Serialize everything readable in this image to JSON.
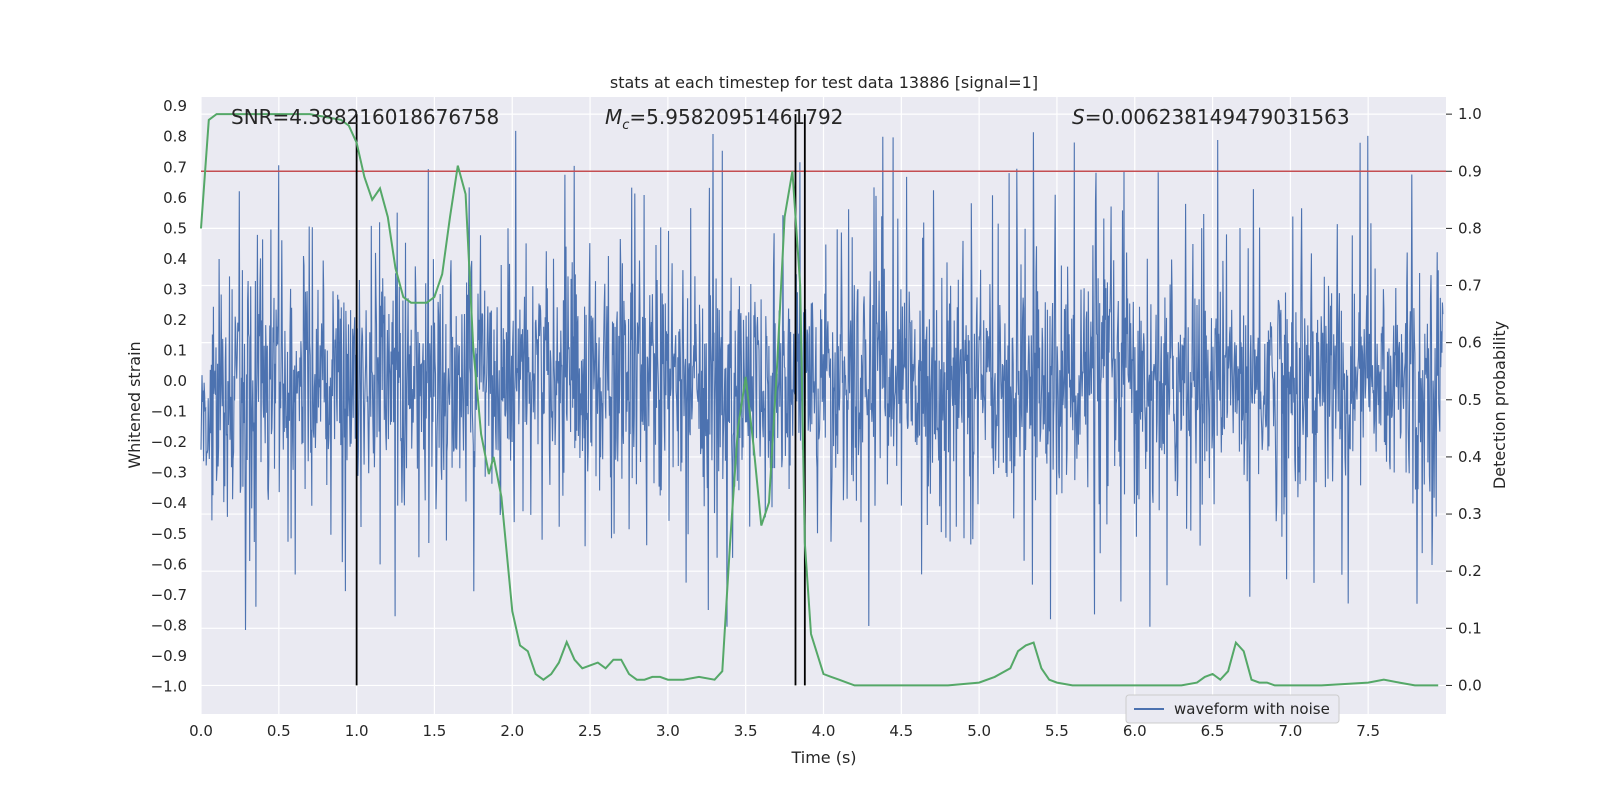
{
  "chart_data": {
    "type": "line",
    "title": "stats at each timestep for test data 13886 [signal=1]",
    "xlabel": "Time (s)",
    "ylabel_left": "Whitened strain",
    "ylabel_right": "Detection probability",
    "xlim": [
      0.0,
      8.0
    ],
    "ylim_left": [
      -1.09,
      0.93
    ],
    "ylim_right": [
      -0.05,
      1.03
    ],
    "xticks": [
      "0.0",
      "0.5",
      "1.0",
      "1.5",
      "2.0",
      "2.5",
      "3.0",
      "3.5",
      "4.0",
      "4.5",
      "5.0",
      "5.5",
      "6.0",
      "6.5",
      "7.0",
      "7.5"
    ],
    "yticks_left": [
      "0.9",
      "0.8",
      "0.7",
      "0.6",
      "0.5",
      "0.4",
      "0.3",
      "0.2",
      "0.1",
      "0.0",
      "−0.1",
      "−0.2",
      "−0.3",
      "−0.4",
      "−0.5",
      "−0.6",
      "−0.7",
      "−0.8",
      "−0.9",
      "−1.0"
    ],
    "yticks_right": [
      "1.0",
      "0.9",
      "0.8",
      "0.7",
      "0.6",
      "0.5",
      "0.4",
      "0.3",
      "0.2",
      "0.1",
      "0.0"
    ],
    "annotations": {
      "snr": "SNR=4.388216018676758",
      "mc_symbol": "M",
      "mc_sub": "c",
      "mc_value": "=5.95820951461792",
      "s_symbol": "S",
      "s_value": "=0.006238149479031563"
    },
    "legend": {
      "label": "waveform with noise",
      "placement": "lower-right"
    },
    "threshold": {
      "value": 0.9,
      "axis": "right",
      "color": "#c44e52"
    },
    "vlines_x": [
      1.0,
      3.82,
      3.88
    ],
    "colors": {
      "strain": "#4c72b0",
      "probability": "#55a868",
      "threshold": "#c44e52",
      "vline": "#000000",
      "axes_bg": "#eaeaf2"
    },
    "strain_summary": {
      "core_band": [
        -0.3,
        0.3
      ],
      "typical_peak": [
        -0.55,
        0.5
      ],
      "max_peak": 0.85,
      "min_peak": -1.0
    },
    "series": [
      {
        "name": "waveform with noise",
        "axis": "left",
        "style": "dense-noise"
      },
      {
        "axis": "right",
        "x": [
          0.0,
          0.05,
          0.1,
          0.15,
          0.2,
          0.3,
          0.4,
          0.5,
          0.6,
          0.7,
          0.8,
          0.9,
          0.95,
          1.0,
          1.05,
          1.1,
          1.15,
          1.2,
          1.25,
          1.3,
          1.35,
          1.4,
          1.45,
          1.5,
          1.55,
          1.6,
          1.65,
          1.7,
          1.75,
          1.8,
          1.85,
          1.88,
          1.93,
          2.0,
          2.05,
          2.1,
          2.15,
          2.2,
          2.25,
          2.3,
          2.35,
          2.4,
          2.45,
          2.5,
          2.55,
          2.6,
          2.65,
          2.7,
          2.75,
          2.8,
          2.85,
          2.9,
          2.95,
          3.0,
          3.1,
          3.2,
          3.3,
          3.35,
          3.4,
          3.45,
          3.5,
          3.55,
          3.6,
          3.65,
          3.7,
          3.75,
          3.8,
          3.85,
          3.88,
          3.92,
          4.0,
          4.05,
          4.1,
          4.15,
          4.2,
          4.3,
          4.5,
          4.8,
          5.0,
          5.1,
          5.2,
          5.25,
          5.3,
          5.35,
          5.4,
          5.45,
          5.5,
          5.6,
          5.8,
          6.0,
          6.3,
          6.4,
          6.45,
          6.5,
          6.55,
          6.6,
          6.65,
          6.7,
          6.75,
          6.8,
          6.85,
          6.9,
          7.0,
          7.2,
          7.5,
          7.6,
          7.7,
          7.8,
          7.85,
          7.95
        ],
        "values": [
          0.8,
          0.99,
          1.0,
          1.0,
          1.0,
          1.0,
          1.0,
          1.0,
          1.0,
          1.0,
          0.995,
          0.99,
          0.98,
          0.95,
          0.89,
          0.85,
          0.87,
          0.82,
          0.73,
          0.68,
          0.67,
          0.67,
          0.67,
          0.68,
          0.72,
          0.82,
          0.91,
          0.86,
          0.59,
          0.44,
          0.37,
          0.4,
          0.33,
          0.13,
          0.07,
          0.06,
          0.02,
          0.01,
          0.02,
          0.04,
          0.076,
          0.045,
          0.03,
          0.035,
          0.04,
          0.03,
          0.045,
          0.045,
          0.02,
          0.01,
          0.01,
          0.015,
          0.015,
          0.01,
          0.01,
          0.015,
          0.01,
          0.025,
          0.25,
          0.45,
          0.54,
          0.42,
          0.28,
          0.32,
          0.55,
          0.82,
          0.9,
          0.7,
          0.25,
          0.09,
          0.02,
          0.015,
          0.01,
          0.005,
          0.0,
          0.0,
          0.0,
          0.0,
          0.005,
          0.015,
          0.03,
          0.06,
          0.07,
          0.075,
          0.03,
          0.01,
          0.005,
          0.0,
          0.0,
          0.0,
          0.0,
          0.005,
          0.015,
          0.02,
          0.01,
          0.025,
          0.075,
          0.06,
          0.01,
          0.005,
          0.005,
          0.0,
          0.0,
          0.0,
          0.005,
          0.01,
          0.005,
          0.0,
          0.0,
          0.0
        ]
      }
    ]
  }
}
